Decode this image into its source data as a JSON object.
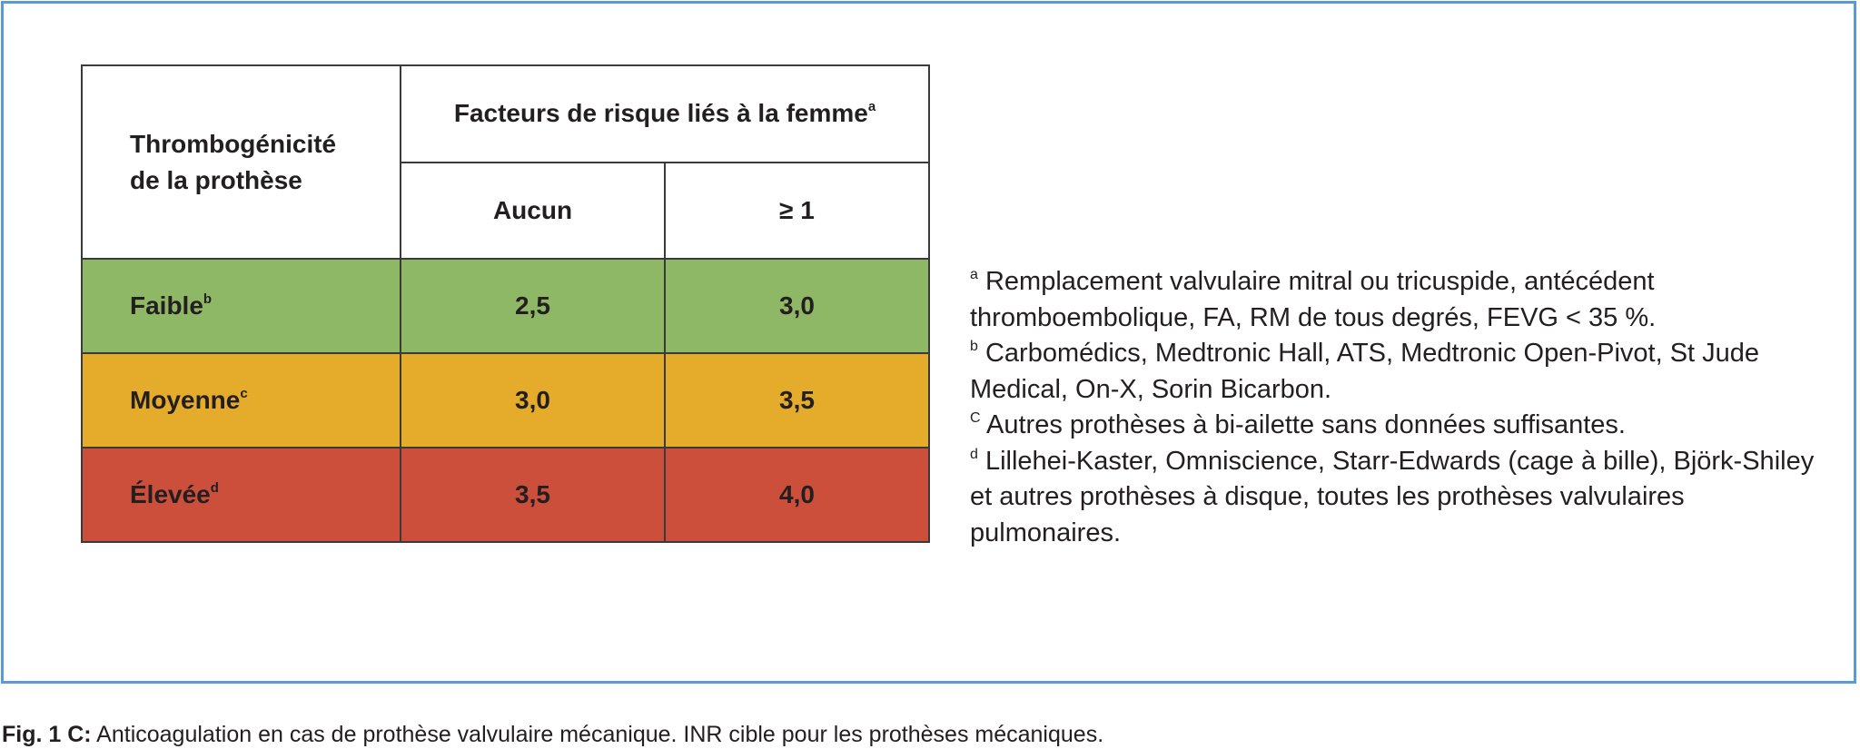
{
  "table": {
    "header_left_line1": "Thrombogénicité",
    "header_left_line2": "de la prothèse",
    "header_top": "Facteurs de risque liés à la femme",
    "header_top_sup": "a",
    "columns": [
      "Aucun",
      "≥ 1"
    ],
    "rows": [
      {
        "label": "Faible",
        "sup": "b",
        "values": [
          "2,5",
          "3,0"
        ],
        "color": "#8fb866"
      },
      {
        "label": "Moyenne",
        "sup": "c",
        "values": [
          "3,0",
          "3,5"
        ],
        "color": "#e5ac2c"
      },
      {
        "label": "Élevée",
        "sup": "d",
        "values": [
          "3,5",
          "4,0"
        ],
        "color": "#cc4f3b"
      }
    ]
  },
  "notes": [
    {
      "sup": "a",
      "text": " Remplacement valvulaire mitral ou tricuspide, antécédent thromboembolique, FA, RM de tous degrés, FEVG < 35 %."
    },
    {
      "sup": "b",
      "text": " Carbomédics, Medtronic Hall, ATS, Medtronic Open-Pivot, St Jude Medical, On-X, Sorin Bicarbon."
    },
    {
      "sup": "C",
      "text": " Autres prothèses à bi-ailette sans données suffisantes."
    },
    {
      "sup": "d",
      "text": " Lillehei-Kaster, Omniscience, Starr-Edwards (cage à bille), Björk-Shiley et autres prothèses à disque, toutes les prothèses valvulaires pulmonaires."
    }
  ],
  "caption": {
    "lead": "Fig. 1 C:",
    "text": " Anticoagulation en cas de prothèse valvulaire mécanique. INR cible pour les prothèses mécaniques."
  },
  "colors": {
    "frame_border": "#5b9bd5",
    "faible": "#8fb866",
    "moyenne": "#e5ac2c",
    "elevee": "#cc4f3b"
  }
}
